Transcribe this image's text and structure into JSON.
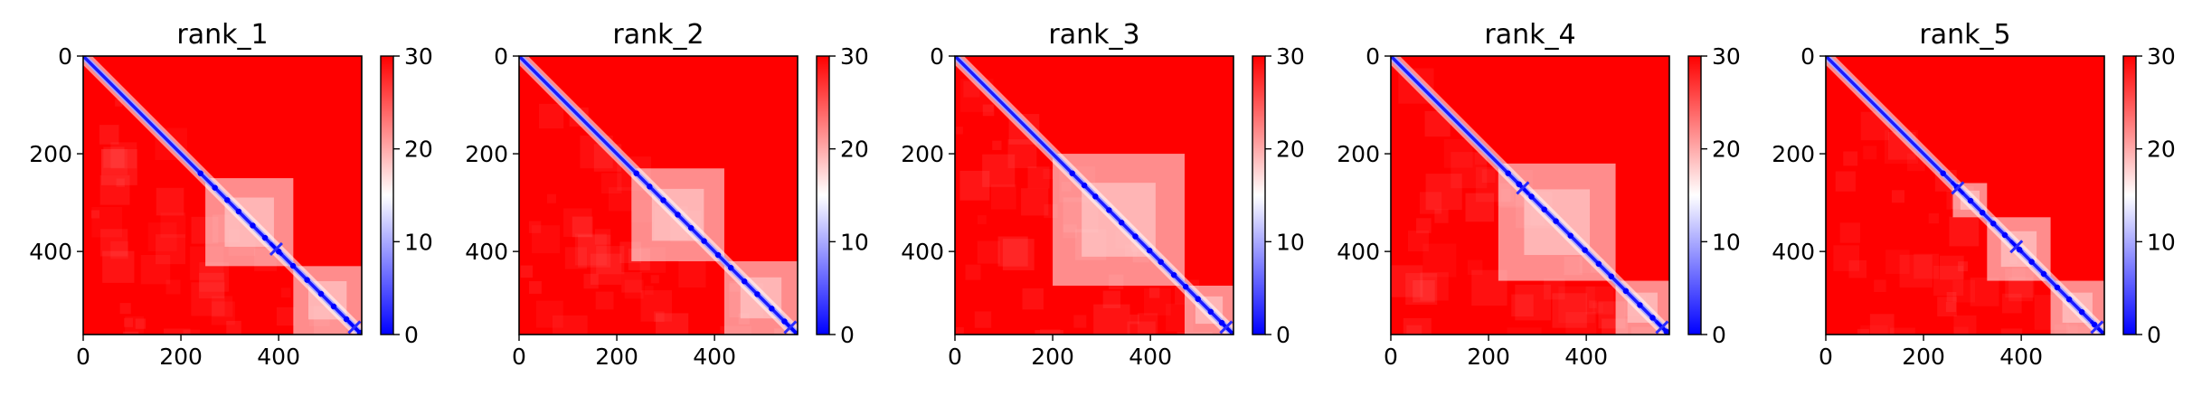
{
  "chart_data": [
    {
      "type": "heatmap",
      "title": "rank_1",
      "xlim": [
        0,
        570
      ],
      "ylim": [
        570,
        0
      ],
      "xticks": [
        0,
        200,
        400
      ],
      "yticks": [
        0,
        200,
        400
      ],
      "colorbar": {
        "range": [
          0,
          30
        ],
        "ticks": [
          0,
          10,
          20,
          30
        ],
        "colors": [
          "#0000ff",
          "#ffffff",
          "#ff0000"
        ]
      },
      "diagonal": {
        "low_value": 0,
        "background_value": 30
      },
      "near_diagonal_blocks": [
        [
          250,
          430
        ],
        [
          430,
          570
        ]
      ],
      "hotspots": [
        395,
        555
      ]
    },
    {
      "type": "heatmap",
      "title": "rank_2",
      "xlim": [
        0,
        570
      ],
      "ylim": [
        570,
        0
      ],
      "xticks": [
        0,
        200,
        400
      ],
      "yticks": [
        0,
        200,
        400
      ],
      "colorbar": {
        "range": [
          0,
          30
        ],
        "ticks": [
          0,
          10,
          20,
          30
        ],
        "colors": [
          "#0000ff",
          "#ffffff",
          "#ff0000"
        ]
      },
      "diagonal": {
        "low_value": 0,
        "background_value": 30
      },
      "near_diagonal_blocks": [
        [
          230,
          420
        ],
        [
          420,
          570
        ]
      ],
      "hotspots": [
        555
      ]
    },
    {
      "type": "heatmap",
      "title": "rank_3",
      "xlim": [
        0,
        570
      ],
      "ylim": [
        570,
        0
      ],
      "xticks": [
        0,
        200,
        400
      ],
      "yticks": [
        0,
        200,
        400
      ],
      "colorbar": {
        "range": [
          0,
          30
        ],
        "ticks": [
          0,
          10,
          20,
          30
        ],
        "colors": [
          "#0000ff",
          "#ffffff",
          "#ff0000"
        ]
      },
      "diagonal": {
        "low_value": 0,
        "background_value": 30
      },
      "near_diagonal_blocks": [
        [
          200,
          470
        ],
        [
          470,
          570
        ]
      ],
      "hotspots": [
        555
      ]
    },
    {
      "type": "heatmap",
      "title": "rank_4",
      "xlim": [
        0,
        570
      ],
      "ylim": [
        570,
        0
      ],
      "xticks": [
        0,
        200,
        400
      ],
      "yticks": [
        0,
        200,
        400
      ],
      "colorbar": {
        "range": [
          0,
          30
        ],
        "ticks": [
          0,
          10,
          20,
          30
        ],
        "colors": [
          "#0000ff",
          "#ffffff",
          "#ff0000"
        ]
      },
      "diagonal": {
        "low_value": 0,
        "background_value": 30
      },
      "near_diagonal_blocks": [
        [
          220,
          460
        ],
        [
          460,
          570
        ]
      ],
      "hotspots": [
        270,
        555
      ]
    },
    {
      "type": "heatmap",
      "title": "rank_5",
      "xlim": [
        0,
        570
      ],
      "ylim": [
        570,
        0
      ],
      "xticks": [
        0,
        200,
        400
      ],
      "yticks": [
        0,
        200,
        400
      ],
      "colorbar": {
        "range": [
          0,
          30
        ],
        "ticks": [
          0,
          10,
          20,
          30
        ],
        "colors": [
          "#0000ff",
          "#ffffff",
          "#ff0000"
        ]
      },
      "diagonal": {
        "low_value": 0,
        "background_value": 30
      },
      "near_diagonal_blocks": [
        [
          260,
          330
        ],
        [
          330,
          460
        ],
        [
          460,
          570
        ]
      ],
      "hotspots": [
        270,
        390,
        555
      ]
    }
  ]
}
